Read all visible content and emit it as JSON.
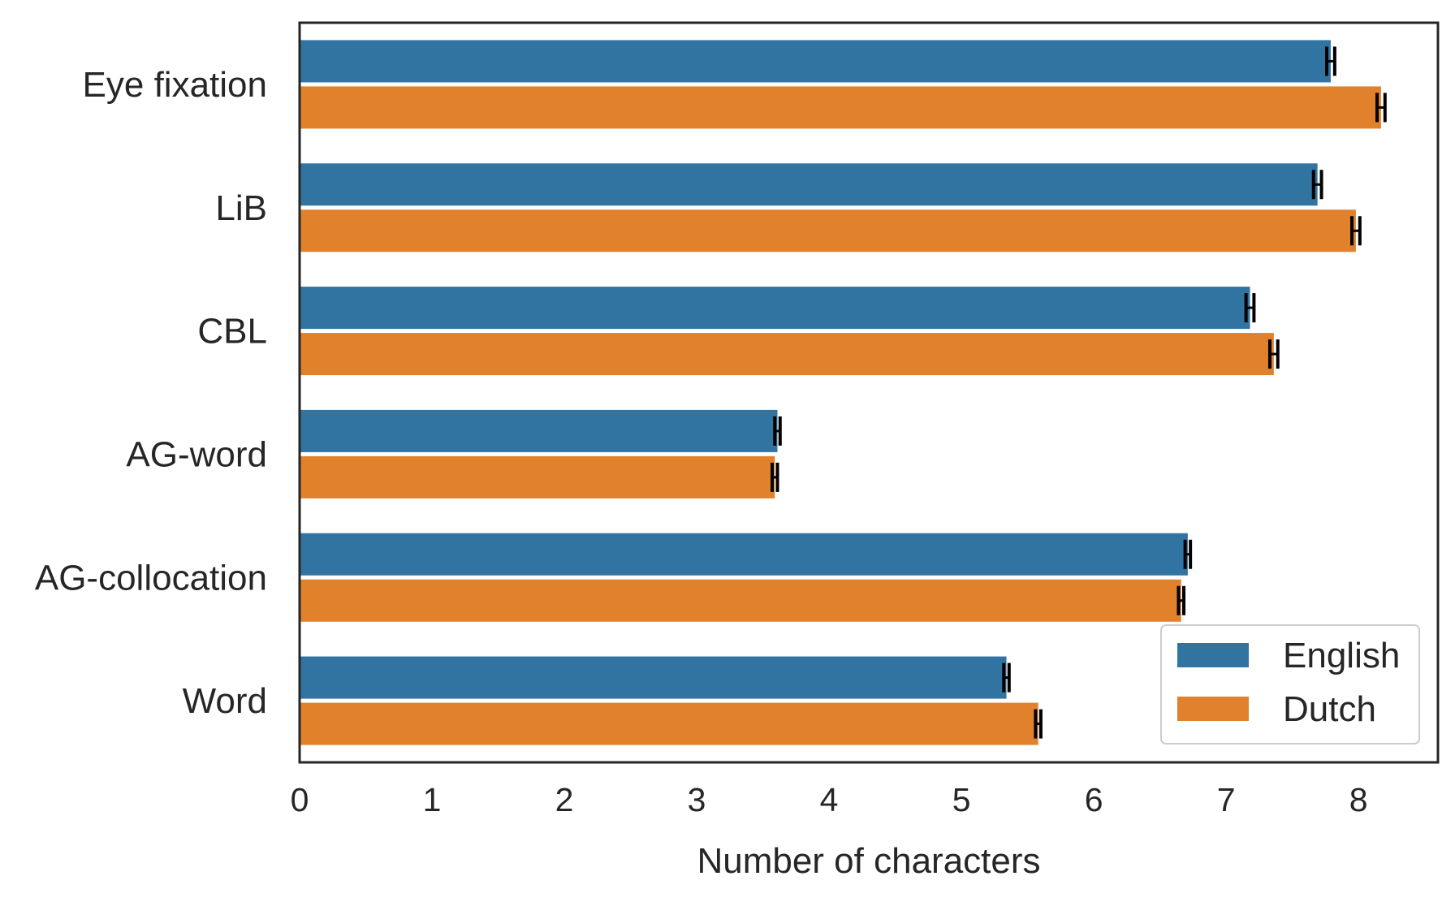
{
  "chart_data": {
    "type": "bar",
    "orientation": "horizontal",
    "categories": [
      "Eye fixation",
      "LiB",
      "CBL",
      "AG-word",
      "AG-collocation",
      "Word"
    ],
    "series": [
      {
        "name": "English",
        "color": "#3274a1",
        "values": [
          7.79,
          7.69,
          7.18,
          3.61,
          6.71,
          5.34
        ],
        "error": [
          0.03,
          0.03,
          0.03,
          0.02,
          0.02,
          0.02
        ]
      },
      {
        "name": "Dutch",
        "color": "#e1812c",
        "values": [
          8.17,
          7.98,
          7.36,
          3.59,
          6.66,
          5.58
        ],
        "error": [
          0.03,
          0.03,
          0.03,
          0.02,
          0.02,
          0.02
        ]
      }
    ],
    "xlabel": "Number of characters",
    "ylabel": "",
    "xlim": [
      0,
      8.6
    ],
    "xticks": [
      "0",
      "1",
      "2",
      "3",
      "4",
      "5",
      "6",
      "7",
      "8"
    ],
    "grid": false,
    "legend": {
      "position": "lower-right",
      "entries": [
        "English",
        "Dutch"
      ]
    }
  }
}
